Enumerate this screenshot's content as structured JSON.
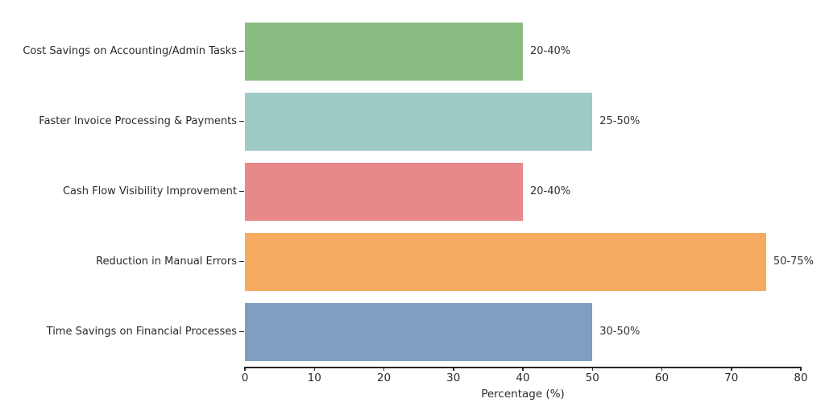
{
  "chart_data": {
    "type": "bar",
    "orientation": "horizontal",
    "categories": [
      "Cost Savings on Accounting/Admin Tasks",
      "Faster Invoice Processing & Payments",
      "Cash Flow Visibility Improvement",
      "Reduction in Manual Errors",
      "Time Savings on Financial Processes"
    ],
    "values": [
      40,
      50,
      40,
      75,
      50
    ],
    "bar_labels": [
      "20-40%",
      "25-50%",
      "20-40%",
      "50-75%",
      "30-50%"
    ],
    "colors": [
      "#8abc81",
      "#9ecac6",
      "#e8888b",
      "#f5ac60",
      "#7e9fc2"
    ],
    "xlabel": "Percentage (%)",
    "xlim": [
      0,
      80
    ],
    "xticks": [
      0,
      10,
      20,
      30,
      40,
      50,
      60,
      70,
      80
    ],
    "grid": false,
    "legend": "none",
    "title": ""
  },
  "styles": {
    "background": "#ffffff",
    "axis_color": "#262626",
    "text_color": "#2b2b2b"
  }
}
